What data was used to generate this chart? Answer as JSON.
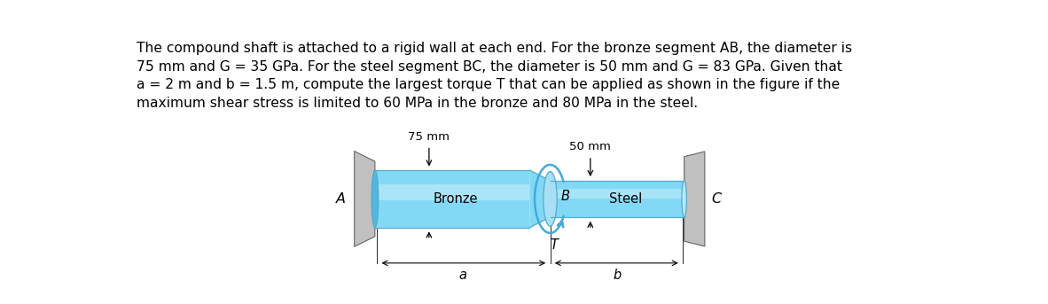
{
  "text_block": "The compound shaft is attached to a rigid wall at each end. For the bronze segment AB, the diameter is\n75 mm and G = 35 GPa. For the steel segment BC, the diameter is 50 mm and G = 83 GPa. Given that\na = 2 m and b = 1.5 m, compute the largest torque T that can be applied as shown in the figure if the\nmaximum shear stress is limited to 60 MPa in the bronze and 80 MPa in the steel.",
  "fig_width": 11.82,
  "fig_height": 3.43,
  "bg_color": "#ffffff",
  "bronze_color_main": "#82d9f5",
  "bronze_color_light": "#c0edf9",
  "bronze_color_dark": "#50b8e0",
  "steel_color_main": "#82d9f5",
  "steel_color_light": "#c0edf9",
  "wall_color": "#c0c0c0",
  "wall_color_dark": "#909090",
  "text_fontsize": 11.2,
  "bronze_label": "Bronze",
  "steel_label": "Steel",
  "label_a": "a",
  "label_b": "b",
  "label_T": "T",
  "label_A": "A",
  "label_B": "B",
  "label_C": "C",
  "dim_75mm": "75 mm",
  "dim_50mm": "50 mm",
  "torque_color": "#44aadd",
  "edge_color": "#55aacc"
}
